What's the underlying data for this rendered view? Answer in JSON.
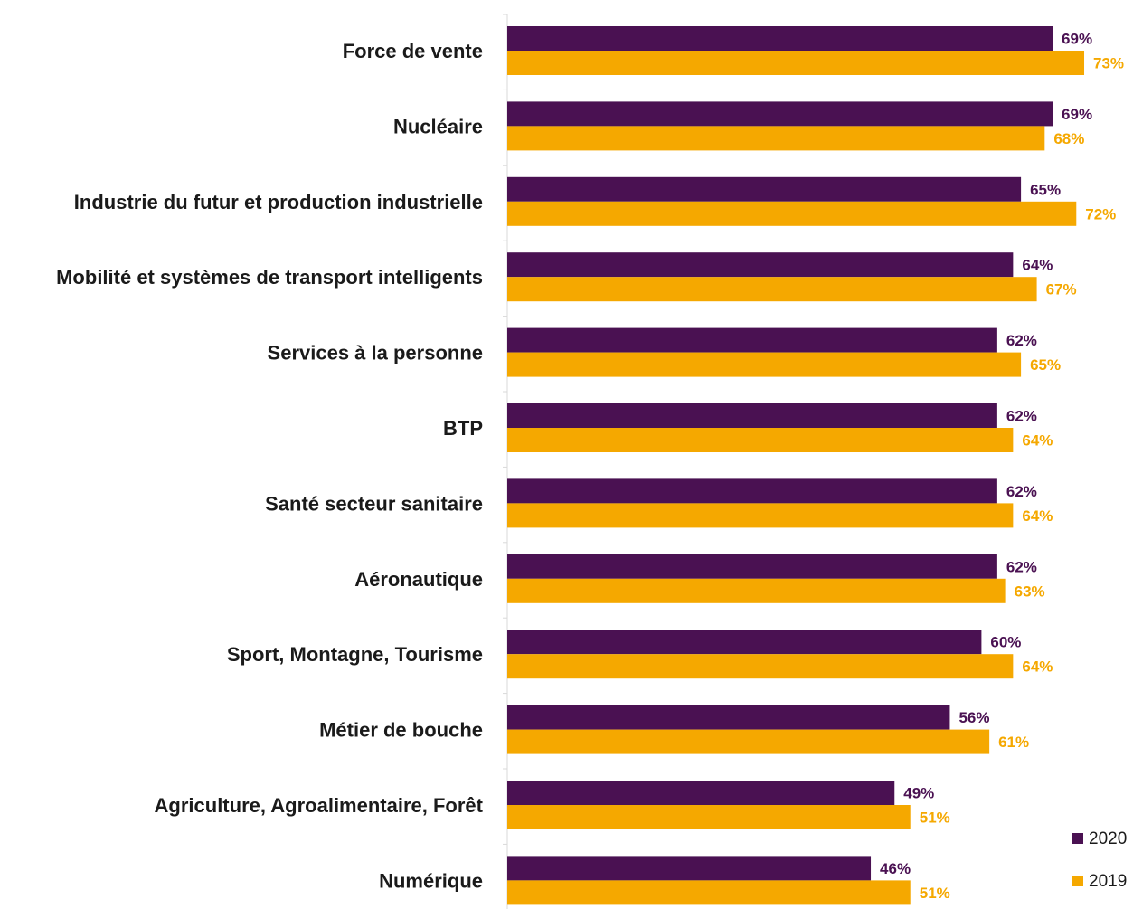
{
  "chart_data": {
    "type": "bar",
    "orientation": "horizontal",
    "categories": [
      "Force de vente",
      "Nucléaire",
      "Industrie du futur et production industrielle",
      "Mobilité et systèmes de transport intelligents",
      "Services à la personne",
      "BTP",
      "Santé secteur sanitaire",
      "Aéronautique",
      "Sport, Montagne, Tourisme",
      "Métier de bouche",
      "Agriculture, Agroalimentaire, Forêt",
      "Numérique"
    ],
    "series": [
      {
        "name": "2020",
        "color": "#4a1152",
        "values": [
          69,
          69,
          65,
          64,
          62,
          62,
          62,
          62,
          60,
          56,
          49,
          46
        ],
        "labels": [
          "69%",
          "69%",
          "65%",
          "64%",
          "62%",
          "62%",
          "62%",
          "62%",
          "60%",
          "56%",
          "49%",
          "46%"
        ]
      },
      {
        "name": "2019",
        "color": "#f5a800",
        "values": [
          73,
          68,
          72,
          67,
          65,
          64,
          64,
          63,
          64,
          61,
          51,
          51
        ],
        "labels": [
          "73%",
          "68%",
          "72%",
          "67%",
          "65%",
          "64%",
          "64%",
          "63%",
          "64%",
          "61%",
          "51%",
          "51%"
        ]
      }
    ],
    "title": "",
    "xlabel": "",
    "ylabel": "",
    "grid": false,
    "legend_position": "bottom-right"
  }
}
